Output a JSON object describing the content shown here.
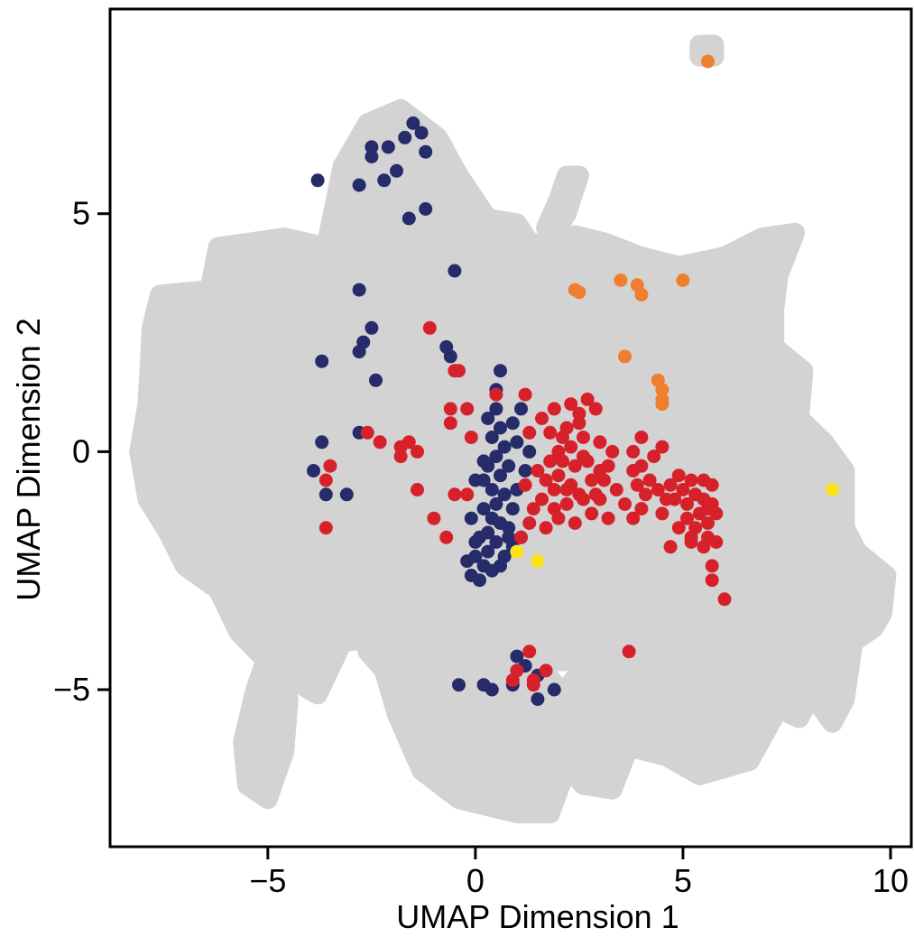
{
  "chart_data": {
    "type": "scatter",
    "title": "",
    "xlabel": "UMAP Dimension 1",
    "ylabel": "UMAP Dimension 2",
    "xlim": [
      -8.8,
      10.5
    ],
    "ylim": [
      -8.3,
      9.3
    ],
    "x_ticks": [
      {
        "value": -5,
        "label": "−5"
      },
      {
        "value": 0,
        "label": "0"
      },
      {
        "value": 5,
        "label": "5"
      },
      {
        "value": 10,
        "label": "10"
      }
    ],
    "y_ticks": [
      {
        "value": -5,
        "label": "−5"
      },
      {
        "value": 0,
        "label": "0"
      },
      {
        "value": 5,
        "label": "5"
      }
    ],
    "grid": false,
    "legend": "none",
    "background": {
      "color": "#d3d3d3",
      "outline": [
        [
          -7.9,
          1.0
        ],
        [
          -7.8,
          2.6
        ],
        [
          -7.6,
          3.3
        ],
        [
          -6.4,
          3.4
        ],
        [
          -6.2,
          4.3
        ],
        [
          -4.6,
          4.5
        ],
        [
          -3.6,
          4.3
        ],
        [
          -3.2,
          6.0
        ],
        [
          -2.6,
          6.9
        ],
        [
          -1.8,
          7.2
        ],
        [
          -0.9,
          6.6
        ],
        [
          -0.4,
          5.8
        ],
        [
          0.3,
          4.9
        ],
        [
          1.0,
          4.8
        ],
        [
          1.3,
          4.4
        ],
        [
          2.0,
          4.3
        ],
        [
          2.4,
          4.55
        ],
        [
          3.1,
          4.4
        ],
        [
          4.0,
          4.1
        ],
        [
          4.9,
          3.9
        ],
        [
          6.0,
          4.1
        ],
        [
          6.9,
          4.5
        ],
        [
          7.7,
          4.6
        ],
        [
          7.3,
          3.7
        ],
        [
          7.2,
          3.0
        ],
        [
          7.2,
          2.2
        ],
        [
          7.9,
          1.7
        ],
        [
          7.8,
          0.7
        ],
        [
          8.4,
          0.2
        ],
        [
          8.9,
          -0.4
        ],
        [
          8.9,
          -1.6
        ],
        [
          9.2,
          -2.1
        ],
        [
          9.9,
          -2.6
        ],
        [
          9.8,
          -3.4
        ],
        [
          9.6,
          -3.7
        ],
        [
          9.1,
          -4.0
        ],
        [
          8.9,
          -5.2
        ],
        [
          8.6,
          -5.7
        ],
        [
          8.1,
          -5.1
        ],
        [
          7.8,
          -5.6
        ],
        [
          7.3,
          -5.4
        ],
        [
          6.6,
          -6.5
        ],
        [
          5.4,
          -6.8
        ],
        [
          4.6,
          -6.4
        ],
        [
          3.7,
          -6.2
        ],
        [
          3.3,
          -7.1
        ],
        [
          2.6,
          -7.0
        ],
        [
          2.2,
          -6.6
        ],
        [
          2.1,
          -5.1
        ],
        [
          2.7,
          -4.4
        ],
        [
          2.3,
          -4.4
        ],
        [
          1.5,
          -4.4
        ],
        [
          2.6,
          -5.7
        ],
        [
          1.8,
          -7.6
        ],
        [
          1.0,
          -7.6
        ],
        [
          -0.4,
          -7.3
        ],
        [
          -1.3,
          -6.7
        ],
        [
          -1.9,
          -5.5
        ],
        [
          -2.2,
          -4.6
        ],
        [
          -2.6,
          -4.2
        ],
        [
          -2.3,
          -3.9
        ],
        [
          -3.2,
          -4.0
        ],
        [
          -3.8,
          -5.1
        ],
        [
          -4.8,
          -4.6
        ],
        [
          -5.7,
          -3.8
        ],
        [
          -6.2,
          -2.9
        ],
        [
          -7.0,
          -2.4
        ],
        [
          -7.4,
          -1.7
        ],
        [
          -7.9,
          -1.0
        ],
        [
          -8.1,
          0.0
        ]
      ],
      "islands": [
        {
          "points": [
            [
              -5.1,
              -4.5
            ],
            [
              -4.5,
              -5.2
            ],
            [
              -4.6,
              -6.3
            ],
            [
              -5.0,
              -7.3
            ],
            [
              -5.5,
              -7.0
            ],
            [
              -5.6,
              -6.1
            ],
            [
              -5.3,
              -5.0
            ]
          ]
        },
        {
          "points": [
            [
              2.2,
              5.8
            ],
            [
              2.5,
              5.8
            ],
            [
              2.2,
              5.0
            ],
            [
              1.9,
              4.6
            ],
            [
              1.7,
              4.7
            ],
            [
              2.0,
              5.3
            ]
          ]
        },
        {
          "points": [
            [
              5.4,
              8.55
            ],
            [
              5.75,
              8.55
            ],
            [
              5.75,
              8.3
            ],
            [
              5.4,
              8.3
            ]
          ]
        }
      ]
    },
    "series": [
      {
        "color": "#262b69",
        "points": [
          [
            -1.5,
            6.9
          ],
          [
            -1.3,
            6.7
          ],
          [
            -1.7,
            6.6
          ],
          [
            -2.5,
            6.4
          ],
          [
            -2.1,
            6.4
          ],
          [
            -1.2,
            6.3
          ],
          [
            -2.5,
            6.2
          ],
          [
            -1.9,
            5.9
          ],
          [
            -3.8,
            5.7
          ],
          [
            -2.8,
            5.6
          ],
          [
            -2.2,
            5.7
          ],
          [
            -1.2,
            5.1
          ],
          [
            -1.6,
            4.9
          ],
          [
            -0.5,
            3.8
          ],
          [
            -2.8,
            3.4
          ],
          [
            -2.5,
            2.6
          ],
          [
            -2.7,
            2.3
          ],
          [
            -2.8,
            2.1
          ],
          [
            -3.7,
            1.9
          ],
          [
            -2.4,
            1.5
          ],
          [
            -0.7,
            2.2
          ],
          [
            -0.6,
            2.0
          ],
          [
            0.6,
            1.7
          ],
          [
            0.5,
            1.3
          ],
          [
            1.1,
            0.9
          ],
          [
            -2.8,
            0.4
          ],
          [
            -3.7,
            0.2
          ],
          [
            -3.9,
            -0.4
          ],
          [
            -3.6,
            -0.9
          ],
          [
            -3.1,
            -0.9
          ],
          [
            0.3,
            0.7
          ],
          [
            0.6,
            0.5
          ],
          [
            0.4,
            0.3
          ],
          [
            0.7,
            0.1
          ],
          [
            0.5,
            -0.1
          ],
          [
            0.3,
            -0.3
          ],
          [
            0.6,
            -0.5
          ],
          [
            0.2,
            -0.6
          ],
          [
            0.4,
            -0.8
          ],
          [
            0.7,
            -0.9
          ],
          [
            0.5,
            -1.1
          ],
          [
            0.2,
            -1.2
          ],
          [
            0.4,
            -1.4
          ],
          [
            0.6,
            -1.5
          ],
          [
            0.3,
            -1.7
          ],
          [
            0.1,
            -1.8
          ],
          [
            0.5,
            -1.9
          ],
          [
            0.3,
            -2.1
          ],
          [
            0.0,
            -2.2
          ],
          [
            0.2,
            -2.4
          ],
          [
            0.4,
            -2.5
          ],
          [
            -0.2,
            -2.3
          ],
          [
            -0.1,
            -2.6
          ],
          [
            0.1,
            -2.7
          ],
          [
            0.8,
            -1.6
          ],
          [
            0.9,
            -1.2
          ],
          [
            1.0,
            -0.8
          ],
          [
            0.8,
            -0.3
          ],
          [
            1.0,
            0.2
          ],
          [
            0.9,
            0.6
          ],
          [
            0.7,
            -2.2
          ],
          [
            0.9,
            -2.0
          ],
          [
            -0.1,
            -1.4
          ],
          [
            0.2,
            -0.2
          ],
          [
            0.0,
            -1.9
          ],
          [
            0.6,
            -2.4
          ],
          [
            1.2,
            -0.4
          ],
          [
            1.3,
            0.0
          ],
          [
            1.1,
            -1.8
          ],
          [
            0.8,
            -1.8
          ],
          [
            0.0,
            -0.6
          ],
          [
            0.5,
            0.9
          ],
          [
            1.0,
            -4.3
          ],
          [
            1.2,
            -4.5
          ],
          [
            1.5,
            -4.7
          ],
          [
            -0.4,
            -4.9
          ],
          [
            0.2,
            -4.9
          ],
          [
            0.4,
            -5.0
          ],
          [
            0.9,
            -4.9
          ],
          [
            1.5,
            -5.2
          ],
          [
            1.9,
            -5.0
          ]
        ]
      },
      {
        "color": "#d7212a",
        "points": [
          [
            -1.1,
            2.6
          ],
          [
            -0.5,
            1.7
          ],
          [
            -0.4,
            1.7
          ],
          [
            0.5,
            1.2
          ],
          [
            1.2,
            1.2
          ],
          [
            1.9,
            0.9
          ],
          [
            2.3,
            1.0
          ],
          [
            2.7,
            1.1
          ],
          [
            2.9,
            0.9
          ],
          [
            2.5,
            0.6
          ],
          [
            2.2,
            0.5
          ],
          [
            1.8,
            0.4
          ],
          [
            2.6,
            0.3
          ],
          [
            3.0,
            0.2
          ],
          [
            2.0,
            0.0
          ],
          [
            1.8,
            -0.2
          ],
          [
            2.4,
            -0.3
          ],
          [
            2.6,
            -0.1
          ],
          [
            3.0,
            -0.4
          ],
          [
            2.8,
            -0.6
          ],
          [
            2.3,
            -0.7
          ],
          [
            1.9,
            -0.8
          ],
          [
            1.6,
            -1.0
          ],
          [
            2.2,
            -1.1
          ],
          [
            2.6,
            -1.0
          ],
          [
            2.9,
            -0.9
          ],
          [
            1.4,
            -1.2
          ],
          [
            1.3,
            -1.5
          ],
          [
            2.0,
            -1.4
          ],
          [
            2.4,
            -1.5
          ],
          [
            1.7,
            -1.6
          ],
          [
            1.1,
            -1.8
          ],
          [
            2.0,
            -0.5
          ],
          [
            1.5,
            -0.4
          ],
          [
            1.2,
            -0.7
          ],
          [
            2.7,
            -0.2
          ],
          [
            3.1,
            -0.6
          ],
          [
            3.3,
            0.0
          ],
          [
            2.8,
            -1.3
          ],
          [
            1.6,
            0.7
          ],
          [
            1.3,
            0.4
          ],
          [
            2.1,
            0.3
          ],
          [
            -0.6,
            0.9
          ],
          [
            -0.2,
            0.9
          ],
          [
            -0.6,
            0.6
          ],
          [
            -0.1,
            0.3
          ],
          [
            -2.6,
            0.4
          ],
          [
            -2.3,
            0.2
          ],
          [
            -1.8,
            0.1
          ],
          [
            -1.6,
            0.2
          ],
          [
            -1.4,
            0.0
          ],
          [
            -1.8,
            -0.1
          ],
          [
            -3.5,
            -0.3
          ],
          [
            -3.6,
            -0.6
          ],
          [
            -3.6,
            -1.6
          ],
          [
            -1.4,
            -0.8
          ],
          [
            -0.5,
            -0.9
          ],
          [
            -0.2,
            -0.9
          ],
          [
            -1.0,
            -1.4
          ],
          [
            -0.7,
            -1.8
          ],
          [
            3.8,
            0.0
          ],
          [
            4.0,
            -0.3
          ],
          [
            4.3,
            -0.1
          ],
          [
            3.8,
            -0.4
          ],
          [
            4.2,
            -0.6
          ],
          [
            4.4,
            -0.8
          ],
          [
            4.1,
            -0.9
          ],
          [
            4.7,
            -0.7
          ],
          [
            5.0,
            -0.8
          ],
          [
            5.3,
            -0.9
          ],
          [
            5.5,
            -1.0
          ],
          [
            5.7,
            -1.1
          ],
          [
            5.1,
            -1.1
          ],
          [
            4.8,
            -1.0
          ],
          [
            5.4,
            -1.3
          ],
          [
            5.6,
            -1.5
          ],
          [
            5.8,
            -1.3
          ],
          [
            5.3,
            -1.6
          ],
          [
            5.6,
            -1.8
          ],
          [
            5.8,
            -1.9
          ],
          [
            5.5,
            -2.0
          ],
          [
            5.2,
            -1.8
          ],
          [
            4.9,
            -1.6
          ],
          [
            5.1,
            -1.4
          ],
          [
            4.5,
            -1.3
          ],
          [
            4.9,
            -0.5
          ],
          [
            5.5,
            -0.6
          ],
          [
            5.7,
            -0.7
          ],
          [
            4.0,
            -1.2
          ],
          [
            3.6,
            -1.1
          ],
          [
            3.4,
            -0.8
          ],
          [
            3.2,
            -0.3
          ],
          [
            3.9,
            -0.7
          ],
          [
            4.6,
            -1.0
          ],
          [
            5.2,
            -0.6
          ],
          [
            5.6,
            -1.2
          ],
          [
            4.0,
            0.3
          ],
          [
            4.5,
            0.1
          ],
          [
            3.8,
            -1.4
          ],
          [
            3.2,
            -1.4
          ],
          [
            3.0,
            -1.0
          ],
          [
            5.7,
            -2.4
          ],
          [
            5.7,
            -2.7
          ],
          [
            6.0,
            -3.1
          ],
          [
            4.7,
            -2.0
          ],
          [
            5.2,
            -1.9
          ],
          [
            3.7,
            -4.2
          ],
          [
            1.4,
            -4.8
          ],
          [
            1.7,
            -4.6
          ],
          [
            1.4,
            -4.9
          ],
          [
            0.9,
            -4.8
          ],
          [
            1.0,
            -4.6
          ],
          [
            1.3,
            -4.2
          ],
          [
            2.1,
            -0.2
          ],
          [
            2.5,
            0.8
          ],
          [
            1.7,
            -0.6
          ],
          [
            2.5,
            -0.9
          ],
          [
            2.2,
            -0.8
          ],
          [
            1.9,
            -1.2
          ],
          [
            2.3,
            0.1
          ]
        ]
      },
      {
        "color": "#ef7f2e",
        "points": [
          [
            5.6,
            8.2
          ],
          [
            2.4,
            3.4
          ],
          [
            2.5,
            3.35
          ],
          [
            3.5,
            3.6
          ],
          [
            3.9,
            3.5
          ],
          [
            4.0,
            3.3
          ],
          [
            5.0,
            3.6
          ],
          [
            3.6,
            2.0
          ],
          [
            4.4,
            1.5
          ],
          [
            4.5,
            1.3
          ],
          [
            4.5,
            1.1
          ],
          [
            4.5,
            1.0
          ]
        ]
      },
      {
        "color": "#fbe419",
        "points": [
          [
            8.6,
            -0.8
          ],
          [
            1.0,
            -2.1
          ],
          [
            1.5,
            -2.3
          ]
        ]
      }
    ]
  }
}
